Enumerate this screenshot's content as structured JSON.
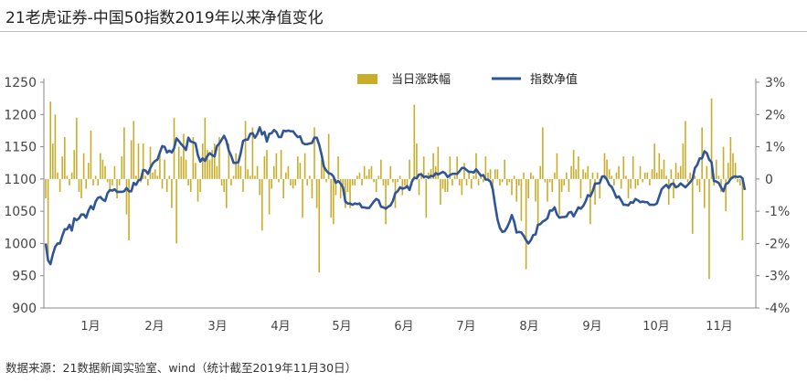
{
  "header": {
    "title": "21老虎证券-中国50指数2019年以来净值变化"
  },
  "footer": {
    "source": "数据来源：21数据新闻实验室、wind（统计截至2019年11月30日）"
  },
  "colors": {
    "bar": "#c9ad2a",
    "line": "#2f5597",
    "axis": "#888888"
  },
  "chart_data": {
    "type": "bar+line",
    "legend_position": "top-center",
    "grid": false,
    "x_tick_labels": [
      "1月",
      "2月",
      "3月",
      "4月",
      "5月",
      "6月",
      "7月",
      "8月",
      "9月",
      "10月",
      "11月"
    ],
    "left_axis": {
      "ticks": [
        "1250",
        "1200",
        "1150",
        "1100",
        "1050",
        "1000",
        "950",
        "900"
      ],
      "ylim": [
        900,
        1250
      ]
    },
    "right_axis": {
      "ticks": [
        "3%",
        "2%",
        "1%",
        "0",
        "-1%",
        "-2%",
        "-3%",
        "-4%"
      ],
      "ylim": [
        -0.04,
        0.03
      ]
    },
    "series": [
      {
        "name": "当日涨跌幅",
        "type": "bar",
        "axis": "right",
        "values": [
          -0.006,
          -0.025,
          0.024,
          0.011,
          0.02,
          0.002,
          -0.004,
          0.007,
          0.013,
          0.001,
          -0.002,
          0.002,
          0.009,
          0.019,
          -0.004,
          -0.006,
          0.008,
          -0.003,
          0.005,
          0.015,
          -0.002,
          0.001,
          -0.002,
          0.008,
          0.006,
          0.004,
          -0.001,
          -0.003,
          -0.002,
          0.004,
          -0.006,
          -0.002,
          0.007,
          0.016,
          -0.011,
          -0.019,
          0.012,
          0.018,
          0.001,
          0.011,
          -0.001,
          0.011,
          0.001,
          -0.002,
          0.01,
          0.002,
          0.003,
          0.001,
          0.008,
          -0.003,
          0.006,
          -0.004,
          0.001,
          -0.009,
          0.019,
          -0.02,
          0.01,
          0.007,
          0.014,
          0.006,
          -0.002,
          -0.004,
          0.013,
          0.005,
          -0.007,
          -0.004,
          0.011,
          0.019,
          0.009,
          0.006,
          0.009,
          0.011,
          0.004,
          0.013,
          -0.002,
          -0.004,
          -0.009,
          0.011,
          -0.002,
          0.001,
          0.008,
          0.006,
          0.004,
          -0.004,
          0.018,
          0.003,
          0.001,
          0.016,
          0.001,
          0.004,
          -0.005,
          -0.016,
          0.007,
          0.009,
          -0.011,
          -0.003,
          0.004,
          0.008,
          -0.001,
          0.009,
          -0.006,
          0.002,
          0.004,
          -0.002,
          -0.003,
          -0.002,
          0.007,
          0.005,
          -0.012,
          0.008,
          -0.002,
          0.001,
          -0.006,
          0.016,
          -0.009,
          -0.029,
          0.006,
          0.004,
          -0.001,
          0.014,
          -0.012,
          -0.014,
          -0.005,
          0.007,
          -0.006,
          -0.002,
          -0.009,
          -0.004,
          -0.009,
          -0.002,
          -0.002,
          0.001,
          0.002,
          -0.002,
          0.004,
          0.001,
          0.003,
          0.004,
          -0.001,
          -0.004,
          0.001,
          0.006,
          -0.002,
          -0.014,
          -0.002,
          0.004,
          -0.001,
          -0.009,
          -0.001,
          0.001,
          -0.005,
          -0.002,
          -0.003,
          0.006,
          -0.002,
          0.023,
          0.011,
          -0.005,
          0.002,
          0.007,
          -0.012,
          0.002,
          0.003,
          0.008,
          0.004,
          0.01,
          -0.008,
          -0.003,
          -0.004,
          -0.004,
          0.007,
          -0.002,
          0.001,
          0.007,
          -0.002,
          -0.005,
          0.005,
          -0.002,
          0.002,
          -0.003,
          0.001,
          0.008,
          -0.002,
          0.001,
          -0.001,
          0.007,
          0.002,
          0.003,
          -0.003,
          0.003,
          0.003,
          -0.002,
          -0.001,
          0.006,
          -0.002,
          -0.001,
          -0.005,
          0.001,
          -0.007,
          -0.002,
          -0.013,
          0.002,
          -0.028,
          -0.006,
          0.002,
          0.001,
          -0.007,
          -0.014,
          0.004,
          0.016,
          -0.001,
          -0.007,
          -0.001,
          -0.004,
          0.002,
          0.008,
          -0.011,
          -0.004,
          -0.002,
          0.002,
          -0.004,
          0.004,
          0.009,
          0.003,
          0.007,
          -0.006,
          0.003,
          0.002,
          0.004,
          -0.014,
          0.002,
          -0.008,
          0.002,
          -0.006,
          0.001,
          0.008,
          0.006,
          0.003,
          0.001,
          -0.002,
          0.002,
          0.004,
          -0.003,
          0.007,
          0.001,
          -0.006,
          -0.003,
          0.007,
          -0.003,
          -0.002,
          0.004,
          -0.001,
          0.002,
          0.002,
          -0.002,
          0.003,
          0.011,
          0.002,
          0.008,
          0.003,
          0.006,
          0.001,
          -0.008,
          0.003,
          -0.006,
          0.005,
          0.002,
          0.004,
          0.011,
          0.018,
          -0.001,
          0.002,
          -0.017,
          0.001,
          -0.002,
          -0.004,
          0.016,
          -0.009,
          0.004,
          -0.031,
          0.025,
          -0.002,
          0.006,
          0.001,
          -0.004,
          0.01,
          -0.01,
          0.005,
          0.013,
          0.008,
          0.005,
          -0.001,
          -0.002,
          -0.019
        ],
        "daily_change_note": null
      },
      {
        "name": "指数净值",
        "type": "line",
        "axis": "left",
        "values": [
          1000,
          974,
          968,
          983,
          995,
          1000,
          1000,
          1012,
          1022,
          1022,
          1029,
          1020,
          1039,
          1036,
          1039,
          1045,
          1045,
          1040,
          1051,
          1058,
          1053,
          1065,
          1071,
          1072,
          1068,
          1066,
          1078,
          1083,
          1082,
          1084,
          1080,
          1080,
          1080,
          1081,
          1086,
          1081,
          1081,
          1094,
          1091,
          1098,
          1099,
          1114,
          1113,
          1108,
          1117,
          1124,
          1128,
          1130,
          1141,
          1151,
          1150,
          1141,
          1144,
          1141,
          1148,
          1163,
          1159,
          1154,
          1150,
          1145,
          1164,
          1158,
          1157,
          1155,
          1137,
          1127,
          1132,
          1128,
          1136,
          1140,
          1137,
          1135,
          1151,
          1155,
          1161,
          1167,
          1159,
          1144,
          1136,
          1125,
          1125,
          1126,
          1140,
          1159,
          1161,
          1161,
          1170,
          1171,
          1164,
          1170,
          1180,
          1169,
          1173,
          1158,
          1170,
          1171,
          1176,
          1173,
          1165,
          1165,
          1175,
          1174,
          1175,
          1174,
          1174,
          1169,
          1165,
          1166,
          1156,
          1154,
          1154,
          1155,
          1156,
          1164,
          1164,
          1153,
          1138,
          1119,
          1113,
          1109,
          1108,
          1104,
          1094,
          1097,
          1093,
          1087,
          1065,
          1062,
          1062,
          1060,
          1062,
          1061,
          1062,
          1056,
          1056,
          1055,
          1055,
          1060,
          1065,
          1069,
          1067,
          1057,
          1056,
          1054,
          1057,
          1059,
          1066,
          1078,
          1081,
          1087,
          1085,
          1086,
          1089,
          1083,
          1096,
          1102,
          1101,
          1107,
          1107,
          1103,
          1104,
          1102,
          1105,
          1104,
          1109,
          1107,
          1109,
          1111,
          1109,
          1103,
          1106,
          1108,
          1108,
          1108,
          1112,
          1117,
          1117,
          1114,
          1111,
          1111,
          1110,
          1115,
          1110,
          1105,
          1106,
          1099,
          1099,
          1096,
          1084,
          1059,
          1037,
          1024,
          1018,
          1019,
          1025,
          1033,
          1044,
          1034,
          1017,
          1018,
          1017,
          1012,
          1005,
          1000,
          1005,
          1013,
          1014,
          1029,
          1030,
          1034,
          1036,
          1039,
          1051,
          1051,
          1056,
          1045,
          1040,
          1041,
          1041,
          1042,
          1048,
          1049,
          1042,
          1049,
          1056,
          1054,
          1058,
          1065,
          1075,
          1073,
          1081,
          1093,
          1093,
          1094,
          1104,
          1104,
          1099,
          1091,
          1088,
          1080,
          1071,
          1073,
          1067,
          1060,
          1060,
          1059,
          1064,
          1063,
          1069,
          1067,
          1064,
          1065,
          1064,
          1064,
          1060,
          1060,
          1060,
          1062,
          1073,
          1084,
          1088,
          1091,
          1086,
          1092,
          1093,
          1087,
          1089,
          1093,
          1090,
          1087,
          1091,
          1095,
          1100,
          1117,
          1122,
          1132,
          1132,
          1143,
          1140,
          1130,
          1126,
          1097,
          1096,
          1094,
          1087,
          1081,
          1092,
          1094,
          1100,
          1103,
          1104,
          1103,
          1104,
          1101,
          1083
        ]
      }
    ]
  }
}
